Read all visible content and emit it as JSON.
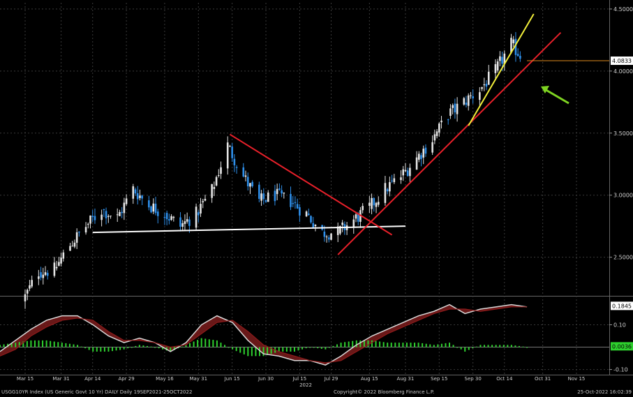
{
  "chart_data": [
    {
      "type": "candlestick",
      "title": "",
      "ylim": [
        2.2,
        4.55
      ],
      "yticks": [
        "2.5000",
        "3.0000",
        "3.5000",
        "4.0000",
        "4.5000"
      ],
      "ytick_values": [
        2.5,
        3.0,
        3.5,
        4.0,
        4.5
      ],
      "last_value_label": "4.0833",
      "last_value": 4.0833,
      "grid": true,
      "closes_by_week": [
        {
          "week": "2022-03-15",
          "close": 2.15
        },
        {
          "week": "2022-03-22",
          "close": 2.38
        },
        {
          "week": "2022-03-29",
          "close": 2.4
        },
        {
          "week": "2022-04-05",
          "close": 2.6
        },
        {
          "week": "2022-04-12",
          "close": 2.75
        },
        {
          "week": "2022-04-19",
          "close": 2.88
        },
        {
          "week": "2022-04-26",
          "close": 2.82
        },
        {
          "week": "2022-05-03",
          "close": 3.05
        },
        {
          "week": "2022-05-10",
          "close": 2.92
        },
        {
          "week": "2022-05-17",
          "close": 2.85
        },
        {
          "week": "2022-05-24",
          "close": 2.75
        },
        {
          "week": "2022-05-31",
          "close": 2.85
        },
        {
          "week": "2022-06-07",
          "close": 3.04
        },
        {
          "week": "2022-06-14",
          "close": 3.4
        },
        {
          "week": "2022-06-21",
          "close": 3.15
        },
        {
          "week": "2022-06-28",
          "close": 2.95
        },
        {
          "week": "2022-07-05",
          "close": 3.0
        },
        {
          "week": "2022-07-12",
          "close": 2.95
        },
        {
          "week": "2022-07-19",
          "close": 2.85
        },
        {
          "week": "2022-07-26",
          "close": 2.7
        },
        {
          "week": "2022-08-02",
          "close": 2.7
        },
        {
          "week": "2022-08-09",
          "close": 2.8
        },
        {
          "week": "2022-08-16",
          "close": 2.9
        },
        {
          "week": "2022-08-23",
          "close": 3.05
        },
        {
          "week": "2022-08-30",
          "close": 3.15
        },
        {
          "week": "2022-09-06",
          "close": 3.3
        },
        {
          "week": "2022-09-13",
          "close": 3.45
        },
        {
          "week": "2022-09-20",
          "close": 3.65
        },
        {
          "week": "2022-09-27",
          "close": 3.75
        },
        {
          "week": "2022-10-04",
          "close": 3.85
        },
        {
          "week": "2022-10-11",
          "close": 4.0
        },
        {
          "week": "2022-10-18",
          "close": 4.22
        },
        {
          "week": "2022-10-24",
          "close": 4.08
        }
      ],
      "lines": [
        {
          "name": "support",
          "color": "#ffffff",
          "from": [
            "2022-04-14",
            2.7
          ],
          "to": [
            "2022-08-31",
            2.75
          ]
        },
        {
          "name": "downtrend",
          "color": "#e8202a",
          "from": [
            "2022-06-14",
            3.49
          ],
          "to": [
            "2022-08-25",
            2.68
          ]
        },
        {
          "name": "uptrend",
          "color": "#e8202a",
          "from": [
            "2022-08-01",
            2.52
          ],
          "to": [
            "2022-11-08",
            4.31
          ]
        },
        {
          "name": "steep-uptrend",
          "color": "#f2ef3a",
          "from": [
            "2022-09-28",
            3.56
          ],
          "to": [
            "2022-10-27",
            4.46
          ]
        }
      ],
      "marker_line": {
        "value": 4.0833,
        "color": "#e08a1e"
      },
      "arrow": {
        "color": "#7ed321"
      }
    },
    {
      "type": "area",
      "ylim": [
        -0.12,
        0.22
      ],
      "yticks": [
        "0.10",
        "-0.10"
      ],
      "ytick_values": [
        0.1,
        -0.1
      ],
      "last_value_labels": [
        "0.1845",
        "0.0036"
      ],
      "last_values": [
        0.1845,
        0.0036
      ],
      "series": [
        {
          "color": "#d8d8d8",
          "values": [
            -0.02,
            0.03,
            0.08,
            0.12,
            0.14,
            0.14,
            0.1,
            0.05,
            0.02,
            0.04,
            0.02,
            -0.02,
            0.02,
            0.1,
            0.14,
            0.11,
            0.03,
            -0.03,
            -0.04,
            -0.06,
            -0.06,
            -0.08,
            -0.04,
            0.01,
            0.05,
            0.08,
            0.11,
            0.14,
            0.16,
            0.19,
            0.15,
            0.17,
            0.18,
            0.19,
            0.18
          ]
        },
        {
          "color": "#8e1a1a",
          "values": [
            -0.04,
            -0.01,
            0.05,
            0.09,
            0.12,
            0.13,
            0.12,
            0.07,
            0.03,
            0.03,
            0.02,
            0.0,
            0.01,
            0.06,
            0.11,
            0.12,
            0.07,
            0.01,
            -0.02,
            -0.04,
            -0.06,
            -0.07,
            -0.06,
            -0.02,
            0.02,
            0.06,
            0.09,
            0.12,
            0.15,
            0.17,
            0.17,
            0.16,
            0.17,
            0.18,
            0.18
          ]
        }
      ],
      "histogram": {
        "color": "#2ed12e",
        "values": [
          0.01,
          0.02,
          0.03,
          0.03,
          0.02,
          0.01,
          -0.02,
          -0.02,
          -0.01,
          0.01,
          0.0,
          -0.02,
          0.01,
          0.04,
          0.03,
          -0.01,
          -0.04,
          -0.04,
          -0.02,
          -0.02,
          0.0,
          -0.01,
          0.02,
          0.03,
          0.03,
          0.02,
          0.02,
          0.02,
          0.01,
          0.02,
          -0.02,
          0.01,
          0.01,
          0.01,
          0.0
        ]
      }
    }
  ],
  "xaxis": {
    "labels": [
      "Mar 15",
      "Mar 31",
      "Apr 14",
      "Apr 29",
      "May 16",
      "May 31",
      "Jun 15",
      "Jun 30",
      "Jul 15",
      "Jul 29",
      "Aug 15",
      "Aug 31",
      "Sep 15",
      "Sep 30",
      "Oct 14",
      "Oct 31",
      "Nov 15"
    ],
    "year": "2022"
  },
  "footer": {
    "left": "USGG10YR Index (US Generic Govt 10 Yr)  DAILY  Daily 19SEP2021-25OCT2022",
    "center": "Copyright© 2022 Bloomberg Finance L.P.",
    "right": "25-Oct-2022 16:02:39"
  }
}
